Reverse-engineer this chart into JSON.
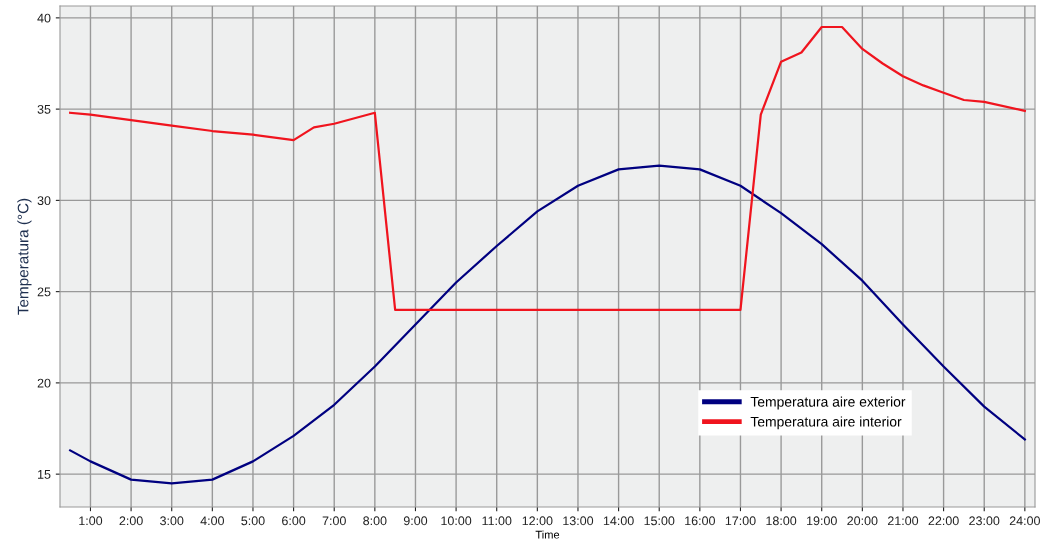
{
  "chart_data": {
    "type": "line",
    "xlabel": "Time",
    "ylabel": "Temperatura (°C)",
    "xlim": [
      0.25,
      24.25
    ],
    "ylim": [
      13.2,
      40.65
    ],
    "xticks": [
      {
        "value": 1,
        "label": "1:00"
      },
      {
        "value": 2,
        "label": "2:00"
      },
      {
        "value": 3,
        "label": "3:00"
      },
      {
        "value": 4,
        "label": "4:00"
      },
      {
        "value": 5,
        "label": "5:00"
      },
      {
        "value": 6,
        "label": "6:00"
      },
      {
        "value": 7,
        "label": "7:00"
      },
      {
        "value": 8,
        "label": "8:00"
      },
      {
        "value": 9,
        "label": "9:00"
      },
      {
        "value": 10,
        "label": "10:00"
      },
      {
        "value": 11,
        "label": "11:00"
      },
      {
        "value": 12,
        "label": "12:00"
      },
      {
        "value": 13,
        "label": "13:00"
      },
      {
        "value": 14,
        "label": "14:00"
      },
      {
        "value": 15,
        "label": "15:00"
      },
      {
        "value": 16,
        "label": "16:00"
      },
      {
        "value": 17,
        "label": "17:00"
      },
      {
        "value": 18,
        "label": "18:00"
      },
      {
        "value": 19,
        "label": "19:00"
      },
      {
        "value": 20,
        "label": "20:00"
      },
      {
        "value": 21,
        "label": "21:00"
      },
      {
        "value": 22,
        "label": "22:00"
      },
      {
        "value": 23,
        "label": "23:00"
      },
      {
        "value": 24,
        "label": "24:00"
      }
    ],
    "yticks": [
      15,
      20,
      25,
      30,
      35,
      40
    ],
    "grid": true,
    "legend": "bottom right",
    "marker": "none",
    "line_style": "solid",
    "series": [
      {
        "name": "Temperatura aire exterior",
        "color": "#000080",
        "x": [
          0.5,
          1,
          2,
          3,
          4,
          5,
          6,
          7,
          8,
          9,
          10,
          11,
          12,
          13,
          14,
          15,
          16,
          17,
          18,
          19,
          20,
          21,
          22,
          23,
          24
        ],
        "values": [
          16.3,
          15.7,
          14.7,
          14.5,
          14.7,
          15.7,
          17.1,
          18.8,
          20.9,
          23.2,
          25.5,
          27.5,
          29.4,
          30.8,
          31.7,
          31.9,
          31.7,
          30.8,
          29.3,
          27.6,
          25.6,
          23.2,
          20.9,
          18.7,
          16.9
        ]
      },
      {
        "name": "Temperatura aire interior",
        "color": "#f0141e",
        "x": [
          0.5,
          1,
          2,
          3,
          4,
          5,
          6,
          6.5,
          7,
          8,
          8.5,
          17,
          17.5,
          18,
          18.5,
          19,
          19.5,
          20,
          20.5,
          21,
          21.5,
          22,
          22.5,
          23,
          24
        ],
        "values": [
          34.8,
          34.7,
          34.4,
          34.1,
          33.8,
          33.6,
          33.3,
          34.0,
          34.2,
          34.8,
          24.0,
          24.0,
          34.7,
          37.6,
          38.1,
          39.5,
          39.5,
          38.3,
          37.5,
          36.8,
          36.3,
          35.9,
          35.5,
          35.4,
          34.9
        ]
      }
    ]
  }
}
